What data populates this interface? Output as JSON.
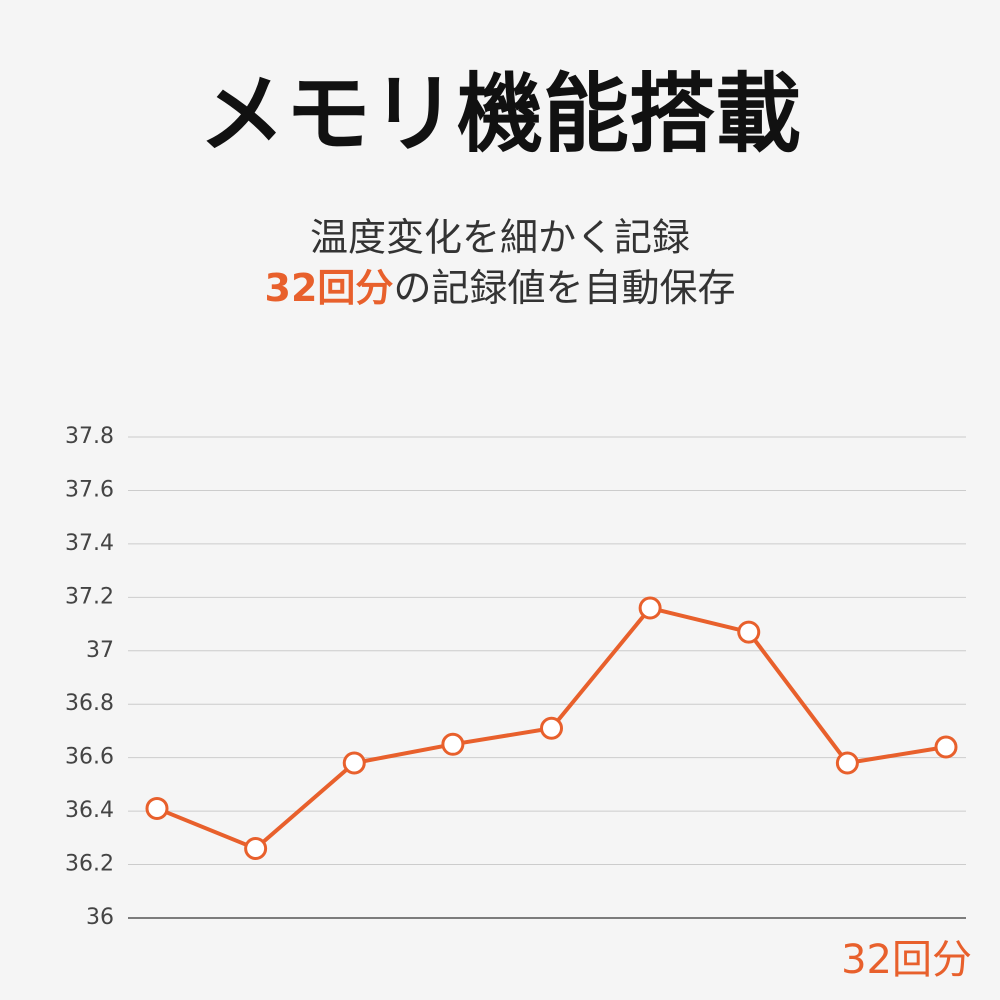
{
  "chart_data": {
    "type": "line",
    "title": "メモリ機能搭載",
    "subtitle_line1": "温度変化を細かく記録",
    "subtitle_line2_highlight": "32回分",
    "subtitle_line2_rest": "の記録値を自動保存",
    "annotation": "32回分",
    "categories": [
      null,
      null,
      null,
      null,
      null,
      null,
      null,
      null,
      null
    ],
    "series": [
      {
        "name": null,
        "color": "#e8602c",
        "values": [
          36.41,
          36.26,
          36.58,
          36.65,
          36.71,
          37.16,
          37.07,
          36.58,
          36.64
        ]
      }
    ],
    "ylim": [
      36,
      37.8
    ],
    "yticks": [
      36,
      36.2,
      36.4,
      36.6,
      36.8,
      37,
      37.2,
      37.4,
      37.6,
      37.8
    ],
    "grid": true,
    "highlight_color": "#e8602c"
  }
}
